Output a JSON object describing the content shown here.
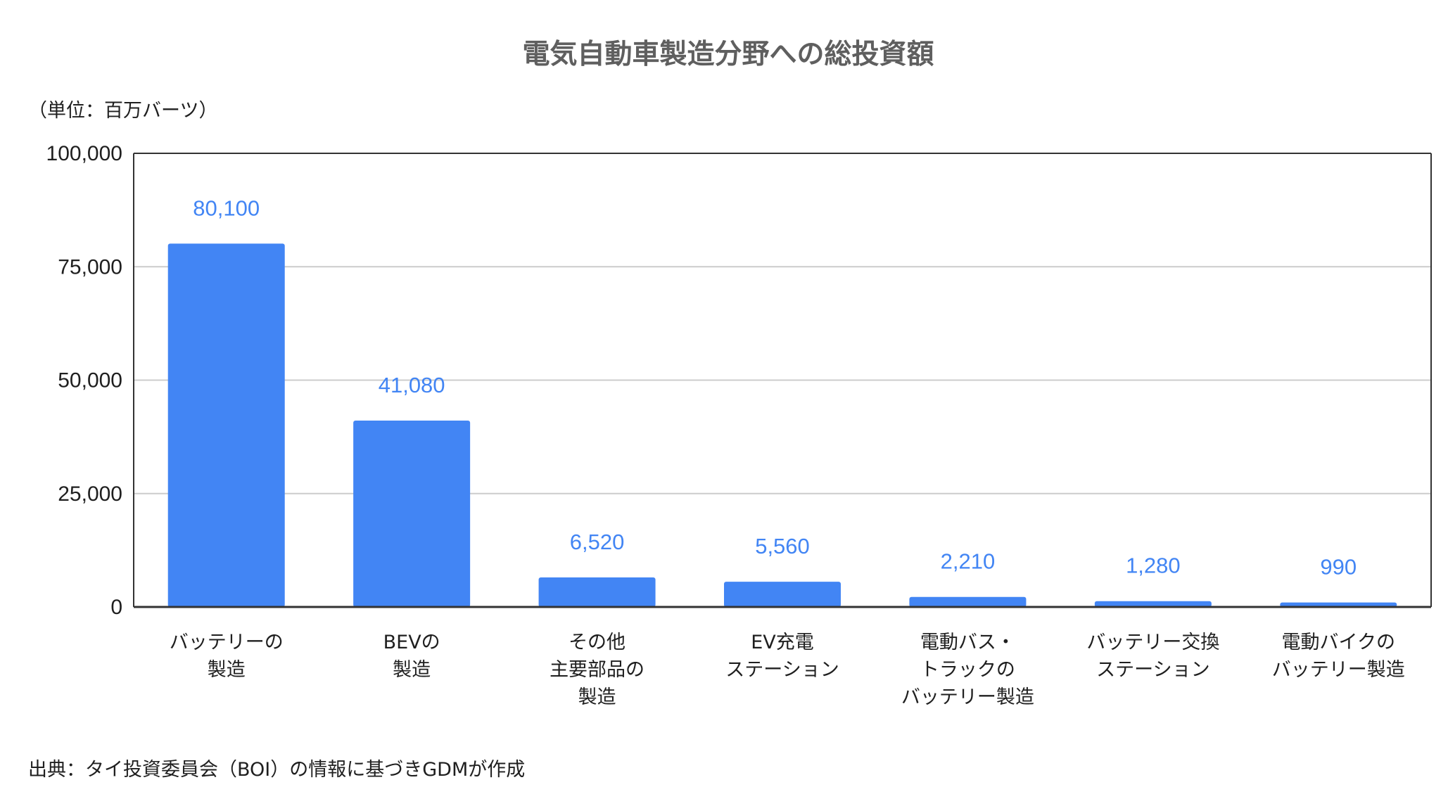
{
  "chart_data": {
    "type": "bar",
    "title": "電気自動車製造分野への総投資額",
    "unit_label": "（単位：百万バーツ）",
    "source": "出典：タイ投資委員会（BOI）の情報に基づきGDMが作成",
    "categories": [
      [
        "バッテリーの",
        "製造"
      ],
      [
        "BEVの",
        "製造"
      ],
      [
        "その他",
        "主要部品の",
        "製造"
      ],
      [
        "EV充電",
        "ステーション"
      ],
      [
        "電動バス・",
        "トラックの",
        "バッテリー製造"
      ],
      [
        "バッテリー交換",
        "ステーション"
      ],
      [
        "電動バイクの",
        "バッテリー製造"
      ]
    ],
    "values": [
      80100,
      41080,
      6520,
      5560,
      2210,
      1280,
      990
    ],
    "value_labels": [
      "80,100",
      "41,080",
      "6,520",
      "5,560",
      "2,210",
      "1,280",
      "990"
    ],
    "ylim": [
      0,
      100000
    ],
    "y_ticks": [
      0,
      25000,
      50000,
      75000,
      100000
    ],
    "y_tick_labels": [
      "0",
      "25,000",
      "50,000",
      "75,000",
      "100,000"
    ],
    "xlabel": "",
    "ylabel": "",
    "grid": true,
    "bar_color": "#4285f4",
    "label_color": "#4285f4",
    "grid_color": "#cccccc"
  }
}
